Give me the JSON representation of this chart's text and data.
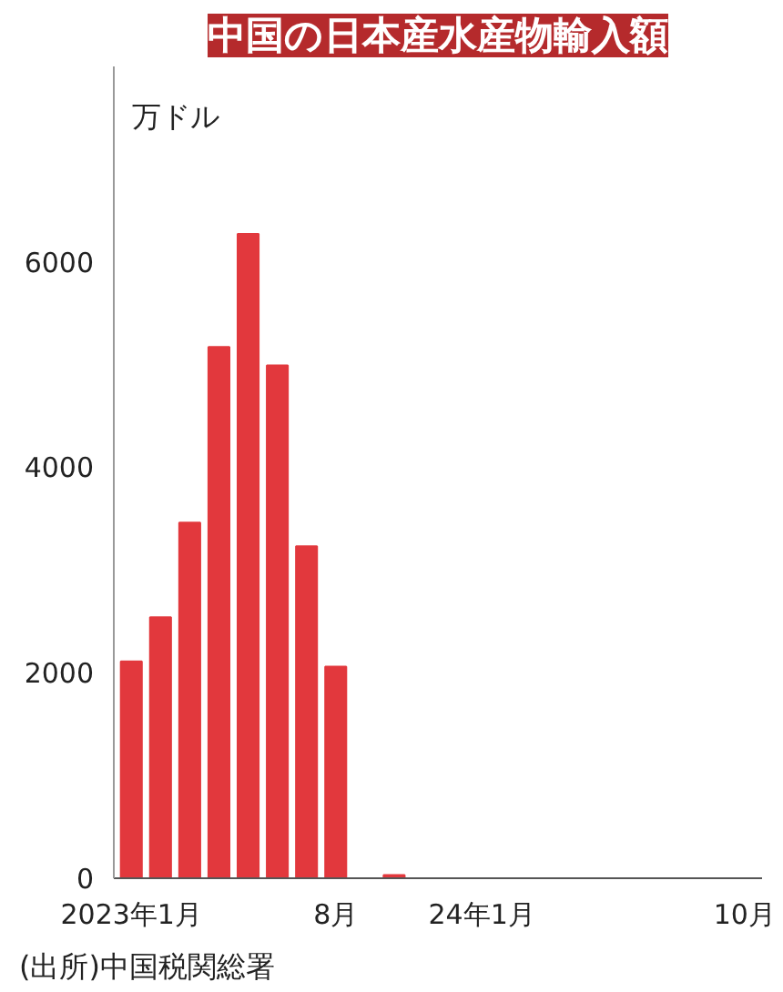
{
  "chart_data": {
    "type": "bar",
    "title": "中国の日本産水産物輸入額",
    "ylabel": "万ドル",
    "categories": [
      "2023年1月",
      null,
      null,
      null,
      null,
      null,
      null,
      "8月",
      null,
      null,
      null,
      null,
      "24年1月",
      null,
      null,
      null,
      null,
      null,
      null,
      null,
      null,
      "10月"
    ],
    "values": [
      2110,
      2540,
      3460,
      5170,
      6270,
      4990,
      3230,
      2060,
      0,
      30,
      0,
      0,
      0,
      0,
      0,
      0,
      0,
      0,
      0,
      0,
      0,
      0
    ],
    "color": "#e2383d",
    "ylim": [
      0,
      7900
    ],
    "yticks": [
      0,
      2000,
      4000,
      6000
    ],
    "grid": false,
    "annotations": [
      "(出所)中国税関総署"
    ]
  }
}
